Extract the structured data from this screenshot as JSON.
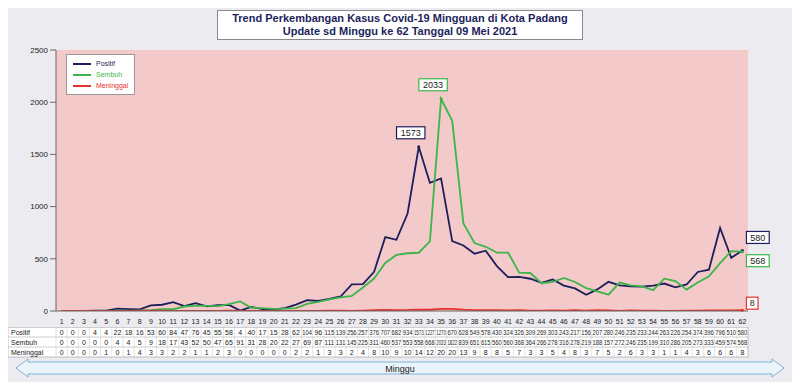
{
  "chart_data": {
    "type": "line",
    "title": "Trend Perkembangan Kasus Covid-19 Mingguan di Kota Padang",
    "subtitle": "Update sd Minggu ke 62 Tanggal 09 Mei 2021",
    "x_label": "Minggu",
    "categories": [
      "1",
      "2",
      "3",
      "4",
      "5",
      "6",
      "7",
      "8",
      "9",
      "10",
      "11",
      "12",
      "13",
      "14",
      "15",
      "16",
      "17",
      "18",
      "19",
      "20",
      "21",
      "22",
      "23",
      "24",
      "25",
      "26",
      "27",
      "28",
      "29",
      "30",
      "31",
      "32",
      "33",
      "34",
      "35",
      "36",
      "37",
      "38",
      "39",
      "40",
      "41",
      "42",
      "43",
      "44",
      "45",
      "46",
      "47",
      "48",
      "49",
      "50",
      "51",
      "52",
      "53",
      "54",
      "55",
      "56",
      "57",
      "58",
      "59",
      "60",
      "61",
      "62"
    ],
    "series": [
      {
        "name": "Positif",
        "color": "#1c1f5c",
        "values": [
          0,
          0,
          0,
          4,
          4,
          22,
          18,
          16,
          53,
          60,
          84,
          47,
          76,
          45,
          55,
          58,
          4,
          40,
          17,
          15,
          28,
          62,
          104,
          96,
          115,
          139,
          256,
          257,
          376,
          707,
          682,
          934,
          1573,
          1227,
          1270,
          670,
          628,
          549,
          578,
          430,
          324,
          326,
          309,
          269,
          303,
          243,
          217,
          156,
          207,
          280,
          246,
          235,
          233,
          244,
          263,
          226,
          254,
          374,
          396,
          796,
          510,
          580
        ]
      },
      {
        "name": "Sembuh",
        "color": "#3db54a",
        "values": [
          0,
          0,
          0,
          0,
          0,
          4,
          4,
          5,
          9,
          18,
          17,
          43,
          52,
          50,
          47,
          65,
          91,
          31,
          28,
          20,
          22,
          27,
          69,
          87,
          111,
          131,
          145,
          225,
          311,
          460,
          537,
          553,
          558,
          668,
          2033,
          1822,
          839,
          651,
          615,
          560,
          560,
          368,
          364,
          266,
          278,
          316,
          278,
          219,
          188,
          157,
          272,
          246,
          235,
          199,
          310,
          286,
          205,
          273,
          333,
          459,
          574,
          568
        ]
      },
      {
        "name": "Meninggal",
        "color": "#e8322d",
        "values": [
          0,
          0,
          0,
          0,
          1,
          0,
          1,
          4,
          3,
          3,
          2,
          2,
          1,
          1,
          2,
          3,
          0,
          0,
          0,
          0,
          0,
          2,
          2,
          1,
          3,
          3,
          2,
          4,
          8,
          10,
          9,
          10,
          14,
          12,
          20,
          20,
          13,
          9,
          8,
          8,
          5,
          7,
          3,
          3,
          5,
          4,
          8,
          3,
          7,
          5,
          2,
          6,
          3,
          3,
          1,
          1,
          4,
          3,
          6,
          6,
          6,
          8
        ]
      }
    ],
    "ylim": [
      0,
      2500
    ],
    "yticks": [
      0,
      500,
      1000,
      1500,
      2000,
      2500
    ],
    "grid": false,
    "legend": "upper left",
    "annotations": [
      {
        "series": "Positif",
        "category": "33",
        "label": "1573"
      },
      {
        "series": "Sembuh",
        "category": "35",
        "label": "2033"
      },
      {
        "series": "Positif",
        "category": "62",
        "label": "580"
      },
      {
        "series": "Sembuh",
        "category": "62",
        "label": "568"
      },
      {
        "series": "Meninggal",
        "category": "62",
        "label": "8"
      }
    ]
  }
}
